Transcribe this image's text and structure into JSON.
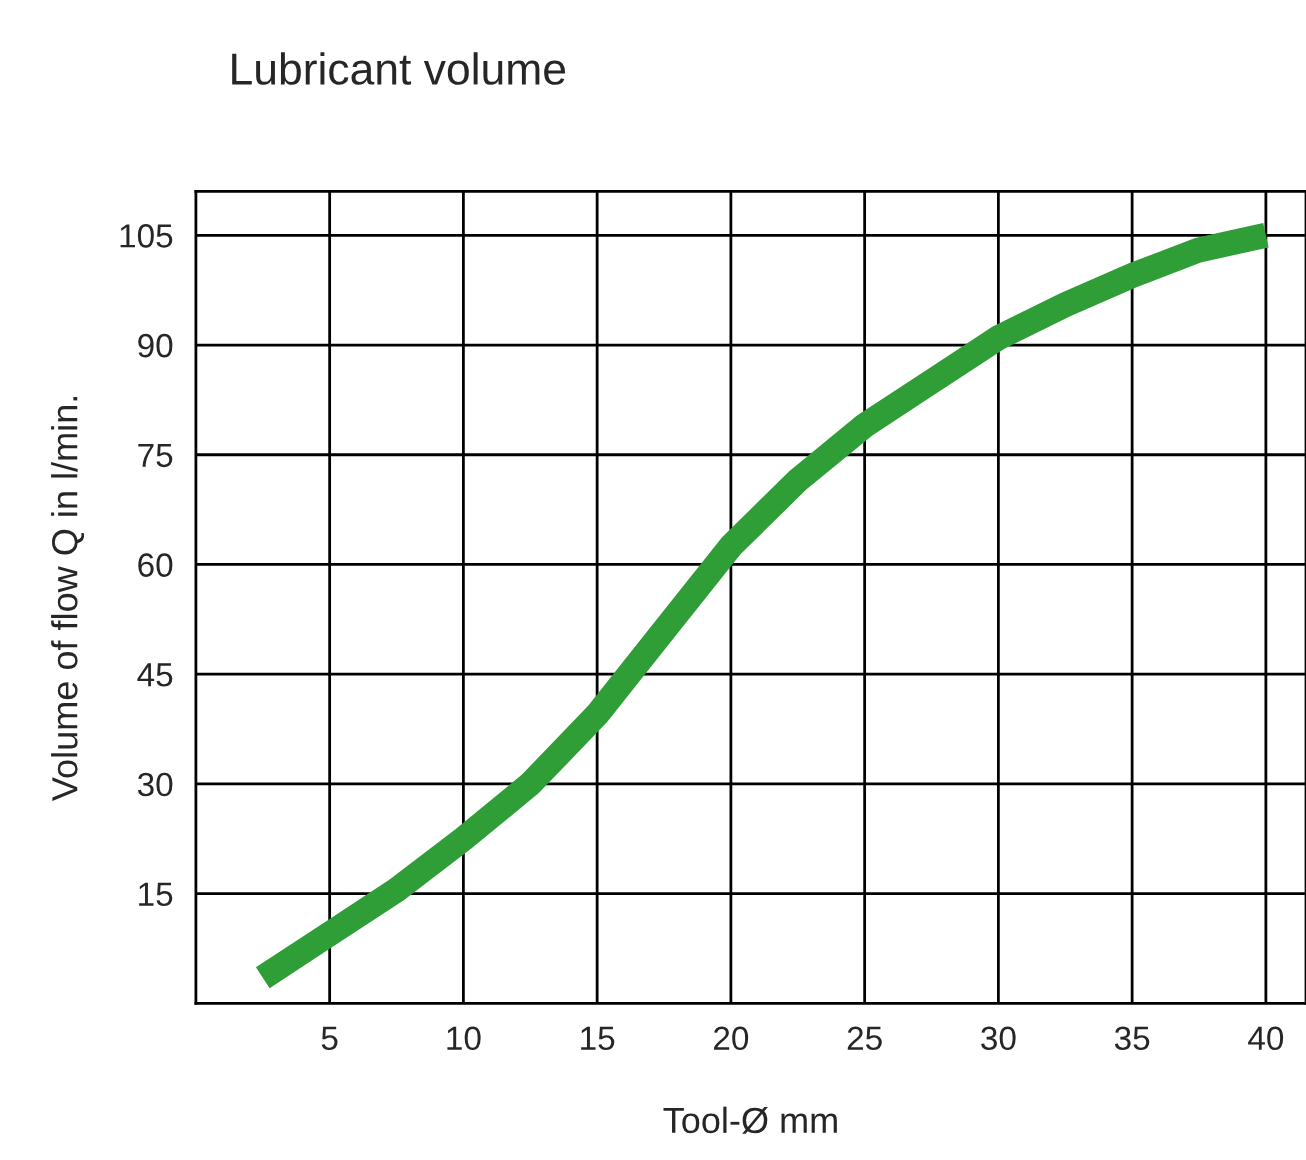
{
  "chart_data": {
    "type": "line",
    "title": "Lubricant volume",
    "xlabel": "Tool-Ø mm",
    "ylabel": "Volume of flow Q in l/min.",
    "x": [
      2.5,
      5,
      7.5,
      10,
      12.5,
      15,
      17.5,
      20,
      22.5,
      25,
      27.5,
      30,
      32.5,
      35,
      37.5,
      40
    ],
    "series": [
      {
        "color": "#2f9e37",
        "values": [
          3.5,
          9.5,
          15.5,
          22.5,
          30,
          39.5,
          51,
          62.5,
          71.5,
          79,
          85,
          91,
          95.5,
          99.5,
          103,
          105
        ]
      }
    ],
    "xlim": [
      0,
      41.5
    ],
    "xticks": [
      5,
      10,
      15,
      20,
      25,
      30,
      35,
      40
    ],
    "ylim": [
      0,
      111
    ],
    "yticks": [
      15,
      30,
      45,
      60,
      75,
      90,
      105
    ],
    "grid": true,
    "marker": "none",
    "line_style": "solid",
    "legend": false
  }
}
